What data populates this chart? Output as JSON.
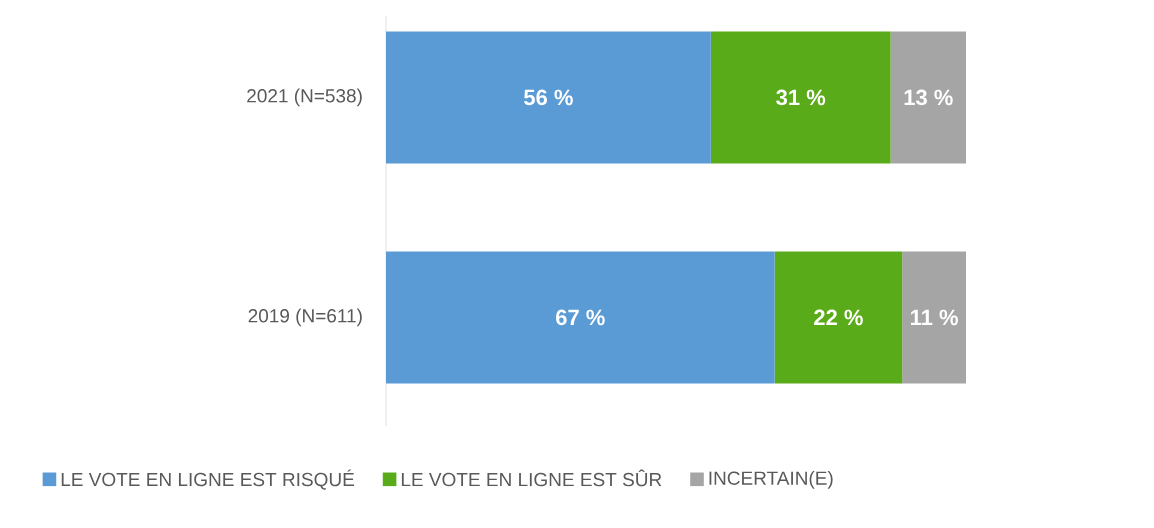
{
  "chart_data": {
    "type": "bar",
    "orientation": "horizontal",
    "stacked": true,
    "categories": [
      "2021 (N=538)",
      "2019 (N=611)"
    ],
    "xlim": [
      0,
      100
    ],
    "tick_labels": "y",
    "legend": "bottom",
    "series": [
      {
        "name": "LE VOTE EN LIGNE EST RISQUÉ",
        "color": "#5b9bd5",
        "values": [
          56,
          67
        ],
        "value_labels": [
          "56 %",
          "67 %"
        ]
      },
      {
        "name": "LE VOTE EN LIGNE EST SÛR",
        "color": "#5aab19",
        "values": [
          31,
          22
        ],
        "value_labels": [
          "31 %",
          "22 %"
        ]
      },
      {
        "name": "INCERTAIN(E)",
        "color": "#a5a5a5",
        "values": [
          13,
          11
        ],
        "value_labels": [
          "13 %",
          "11 %"
        ]
      }
    ]
  }
}
